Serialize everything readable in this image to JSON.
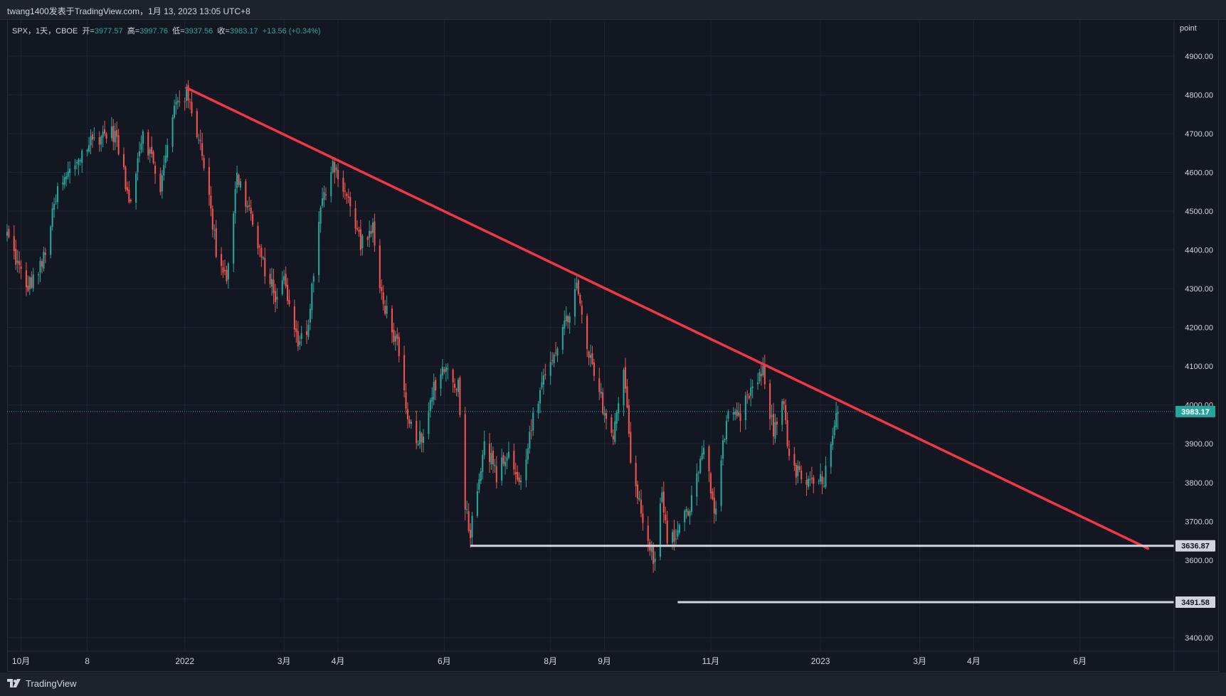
{
  "header": {
    "attribution": "twang1400发表于TradingView.com，1月 13, 2023 13:05 UTC+8"
  },
  "legend": {
    "symbol": "SPX，1天，CBOE",
    "open_label": "开=",
    "open": "3977.57",
    "high_label": "高=",
    "high": "3997.76",
    "low_label": "低=",
    "low": "3937.56",
    "close_label": "收=",
    "close": "3983.17",
    "change": "+13.56 (+0.34%)"
  },
  "axis_unit": "point",
  "footer": {
    "brand": "TradingView"
  },
  "colors": {
    "up": "#26a69a",
    "down": "#ef5350",
    "trendline": "#f23645",
    "support": "#d1d4dc",
    "grid": "#1f2430",
    "background": "#131722"
  },
  "chart_data": {
    "type": "candlestick",
    "symbol": "SPX",
    "interval": "1D",
    "y_axis": {
      "ticks": [
        3400,
        3500,
        3600,
        3700,
        3800,
        3900,
        4000,
        4100,
        4200,
        4300,
        4400,
        4500,
        4600,
        4700,
        4800,
        4900
      ],
      "range": [
        3365,
        4995
      ]
    },
    "x_axis": {
      "range": [
        "2021-09-23",
        "2023-07-25"
      ],
      "ticks": [
        {
          "date": "2021-10-01",
          "label": "10月"
        },
        {
          "date": "2021-11-08",
          "label": "8"
        },
        {
          "date": "2022-01-03",
          "label": "2022"
        },
        {
          "date": "2022-03-01",
          "label": "3月"
        },
        {
          "date": "2022-04-01",
          "label": "4月"
        },
        {
          "date": "2022-06-01",
          "label": "6月"
        },
        {
          "date": "2022-08-01",
          "label": "8月"
        },
        {
          "date": "2022-09-01",
          "label": "9月"
        },
        {
          "date": "2022-11-01",
          "label": "11月"
        },
        {
          "date": "2023-01-03",
          "label": "2023"
        },
        {
          "date": "2023-03-01",
          "label": "3月"
        },
        {
          "date": "2023-04-01",
          "label": "4月"
        },
        {
          "date": "2023-06-01",
          "label": "6月"
        }
      ]
    },
    "last_price": {
      "value": 3983.17,
      "label": "3983.17"
    },
    "price_path": [
      [
        "2021-09-23",
        4440
      ],
      [
        "2021-10-04",
        4300
      ],
      [
        "2021-10-13",
        4360
      ],
      [
        "2021-10-22",
        4550
      ],
      [
        "2021-11-02",
        4630
      ],
      [
        "2021-11-10",
        4680
      ],
      [
        "2021-11-18",
        4700
      ],
      [
        "2021-11-24",
        4700
      ],
      [
        "2021-11-30",
        4570
      ],
      [
        "2021-12-02",
        4520
      ],
      [
        "2021-12-10",
        4710
      ],
      [
        "2021-12-20",
        4560
      ],
      [
        "2021-12-29",
        4790
      ],
      [
        "2022-01-04",
        4800
      ],
      [
        "2022-01-13",
        4660
      ],
      [
        "2022-01-21",
        4400
      ],
      [
        "2022-01-27",
        4330
      ],
      [
        "2022-02-02",
        4590
      ],
      [
        "2022-02-10",
        4490
      ],
      [
        "2022-02-14",
        4400
      ],
      [
        "2022-02-24",
        4280
      ],
      [
        "2022-03-01",
        4320
      ],
      [
        "2022-03-08",
        4170
      ],
      [
        "2022-03-14",
        4180
      ],
      [
        "2022-03-22",
        4500
      ],
      [
        "2022-03-29",
        4630
      ],
      [
        "2022-04-05",
        4550
      ],
      [
        "2022-04-14",
        4420
      ],
      [
        "2022-04-21",
        4450
      ],
      [
        "2022-04-25",
        4300
      ],
      [
        "2022-05-05",
        4150
      ],
      [
        "2022-05-11",
        3950
      ],
      [
        "2022-05-20",
        3900
      ],
      [
        "2022-05-26",
        4050
      ],
      [
        "2022-06-01",
        4100
      ],
      [
        "2022-06-09",
        4050
      ],
      [
        "2022-06-13",
        3750
      ],
      [
        "2022-06-16",
        3670
      ],
      [
        "2022-06-24",
        3910
      ],
      [
        "2022-07-01",
        3820
      ],
      [
        "2022-07-08",
        3880
      ],
      [
        "2022-07-14",
        3790
      ],
      [
        "2022-07-22",
        3960
      ],
      [
        "2022-08-01",
        4120
      ],
      [
        "2022-08-10",
        4210
      ],
      [
        "2022-08-16",
        4305
      ],
      [
        "2022-08-22",
        4140
      ],
      [
        "2022-08-29",
        4030
      ],
      [
        "2022-09-06",
        3910
      ],
      [
        "2022-09-12",
        4110
      ],
      [
        "2022-09-16",
        3870
      ],
      [
        "2022-09-23",
        3690
      ],
      [
        "2022-09-30",
        3590
      ],
      [
        "2022-10-04",
        3790
      ],
      [
        "2022-10-07",
        3640
      ],
      [
        "2022-10-13",
        3670
      ],
      [
        "2022-10-21",
        3750
      ],
      [
        "2022-10-28",
        3900
      ],
      [
        "2022-11-03",
        3720
      ],
      [
        "2022-11-10",
        3960
      ],
      [
        "2022-11-18",
        3965
      ],
      [
        "2022-11-23",
        4030
      ],
      [
        "2022-12-01",
        4080
      ],
      [
        "2022-12-07",
        3930
      ],
      [
        "2022-12-13",
        4020
      ],
      [
        "2022-12-16",
        3850
      ],
      [
        "2022-12-22",
        3820
      ],
      [
        "2022-12-28",
        3790
      ],
      [
        "2023-01-05",
        3810
      ],
      [
        "2023-01-09",
        3890
      ],
      [
        "2023-01-13",
        3983
      ]
    ],
    "annotations": [
      {
        "type": "trendline",
        "from": [
          "2022-01-04",
          4818
        ],
        "to": [
          "2023-07-10",
          3630
        ]
      },
      {
        "type": "horizontal_ray",
        "from": "2022-06-16",
        "price": 3636.87,
        "label": "3636.87"
      },
      {
        "type": "horizontal_ray",
        "from": "2022-10-13",
        "price": 3491.58,
        "label": "3491.58"
      }
    ]
  }
}
